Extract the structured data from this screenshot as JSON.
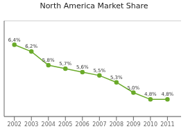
{
  "chart_data": {
    "type": "line",
    "title": "North America Market Share",
    "x": [
      2002,
      2003,
      2004,
      2005,
      2006,
      2007,
      2008,
      2009,
      2010,
      2011
    ],
    "values": [
      6.4,
      6.2,
      5.8,
      5.7,
      5.6,
      5.5,
      5.3,
      5.0,
      4.8,
      4.8
    ],
    "value_labels": [
      "6,4%",
      "6,2%",
      "5,8%",
      "5,7%",
      "5,6%",
      "5,5%",
      "5,3%",
      "5,0%",
      "4,8%",
      "4,8%"
    ],
    "data_labels": true,
    "color": "#6aaa2a",
    "marker": "circle",
    "xlim": [
      2001.4,
      2011.8
    ],
    "xticks": [
      2002,
      2003,
      2004,
      2005,
      2006,
      2007,
      2008,
      2009,
      2010,
      2011
    ],
    "ylim": [
      4.3,
      7.1
    ],
    "yticks": [
      4.5,
      5,
      5.5,
      6,
      6.5,
      7
    ],
    "grid": true,
    "tick_labels": "x"
  }
}
